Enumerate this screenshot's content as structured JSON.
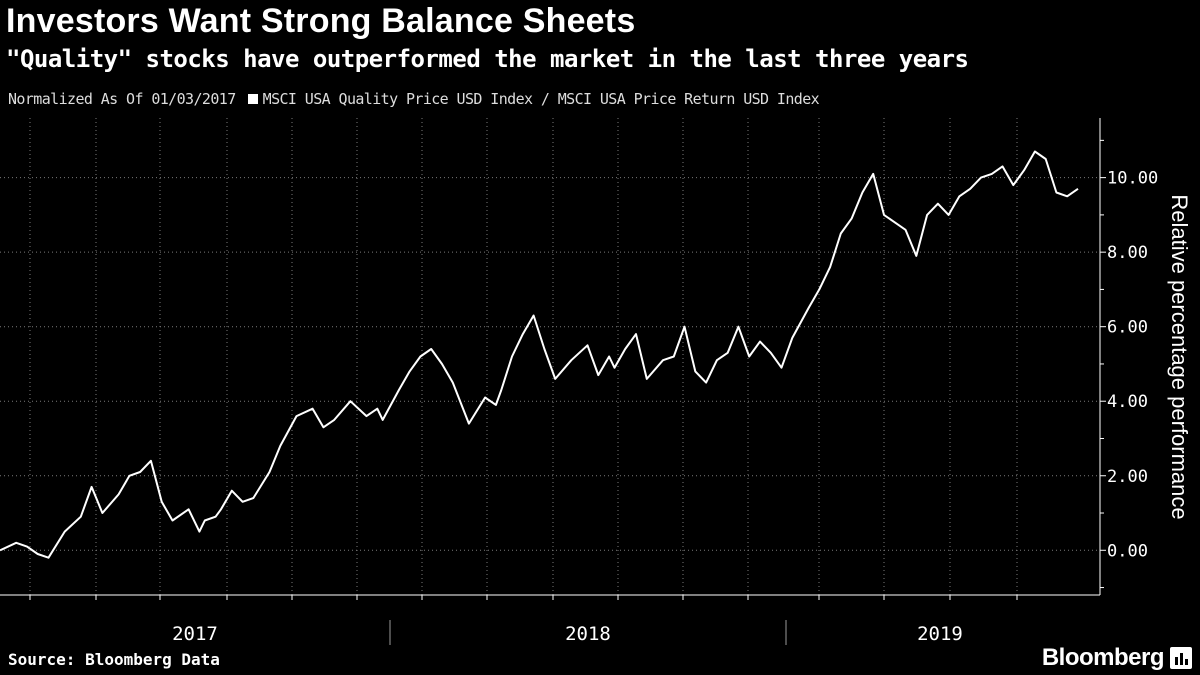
{
  "chart_data": {
    "type": "line",
    "title": "Investors Want Strong Balance Sheets",
    "subtitle": "\"Quality\" stocks have outperformed the market in the last three years",
    "note": "Normalized As Of 01/03/2017",
    "series": [
      {
        "name": "MSCI USA Quality Price USD Index / MSCI USA Price Return USD Index",
        "color": "#ffffff",
        "x": [
          0,
          0.015,
          0.025,
          0.035,
          0.045,
          0.06,
          0.075,
          0.085,
          0.095,
          0.11,
          0.12,
          0.13,
          0.14,
          0.15,
          0.16,
          0.175,
          0.185,
          0.19,
          0.2,
          0.205,
          0.215,
          0.225,
          0.235,
          0.25,
          0.26,
          0.275,
          0.29,
          0.3,
          0.31,
          0.325,
          0.34,
          0.35,
          0.355,
          0.37,
          0.38,
          0.39,
          0.4,
          0.41,
          0.42,
          0.435,
          0.45,
          0.46,
          0.465,
          0.475,
          0.485,
          0.495,
          0.505,
          0.515,
          0.53,
          0.545,
          0.555,
          0.565,
          0.57,
          0.58,
          0.59,
          0.6,
          0.615,
          0.625,
          0.635,
          0.645,
          0.655,
          0.665,
          0.675,
          0.685,
          0.695,
          0.705,
          0.715,
          0.725,
          0.735,
          0.75,
          0.76,
          0.77,
          0.78,
          0.79,
          0.8,
          0.81,
          0.82,
          0.83,
          0.84,
          0.85,
          0.86,
          0.87,
          0.88,
          0.89,
          0.9,
          0.91,
          0.92,
          0.93,
          0.94,
          0.95,
          0.96,
          0.97,
          0.98,
          0.99,
          1.0
        ],
        "values": [
          0.0,
          0.2,
          0.1,
          -0.1,
          -0.2,
          0.5,
          0.9,
          1.7,
          1.0,
          1.5,
          2.0,
          2.1,
          2.4,
          1.3,
          0.8,
          1.1,
          0.5,
          0.8,
          0.9,
          1.1,
          1.6,
          1.3,
          1.4,
          2.1,
          2.8,
          3.6,
          3.8,
          3.3,
          3.5,
          4.0,
          3.6,
          3.8,
          3.5,
          4.3,
          4.8,
          5.2,
          5.4,
          5.0,
          4.5,
          3.4,
          4.1,
          3.9,
          4.3,
          5.2,
          5.8,
          6.3,
          5.4,
          4.6,
          5.1,
          5.5,
          4.7,
          5.2,
          4.9,
          5.4,
          5.8,
          4.6,
          5.1,
          5.2,
          6.0,
          4.8,
          4.5,
          5.1,
          5.3,
          6.0,
          5.2,
          5.6,
          5.3,
          4.9,
          5.7,
          6.5,
          7.0,
          7.6,
          8.5,
          8.9,
          9.6,
          10.1,
          9.0,
          8.8,
          8.6,
          7.9,
          9.0,
          9.3,
          9.0,
          9.5,
          9.7,
          10.0,
          10.1,
          10.3,
          9.8,
          10.2,
          10.7,
          10.5,
          9.6,
          9.5,
          9.7
        ]
      }
    ],
    "x_range": [
      "2017-01-03",
      "2019-09"
    ],
    "x_ticks": [
      "2017",
      "2018",
      "2019"
    ],
    "ylabel": "Relative percentage performance",
    "ylim": [
      -1.2,
      11.6
    ],
    "y_ticks": [
      "0.00",
      "2.00",
      "4.00",
      "6.00",
      "8.00",
      "10.00"
    ],
    "y_tick_values": [
      0,
      2,
      4,
      6,
      8,
      10
    ],
    "grid": true,
    "legend_position": "top-left"
  },
  "footer": {
    "source": "Source: Bloomberg Data",
    "brand": "Bloomberg"
  }
}
